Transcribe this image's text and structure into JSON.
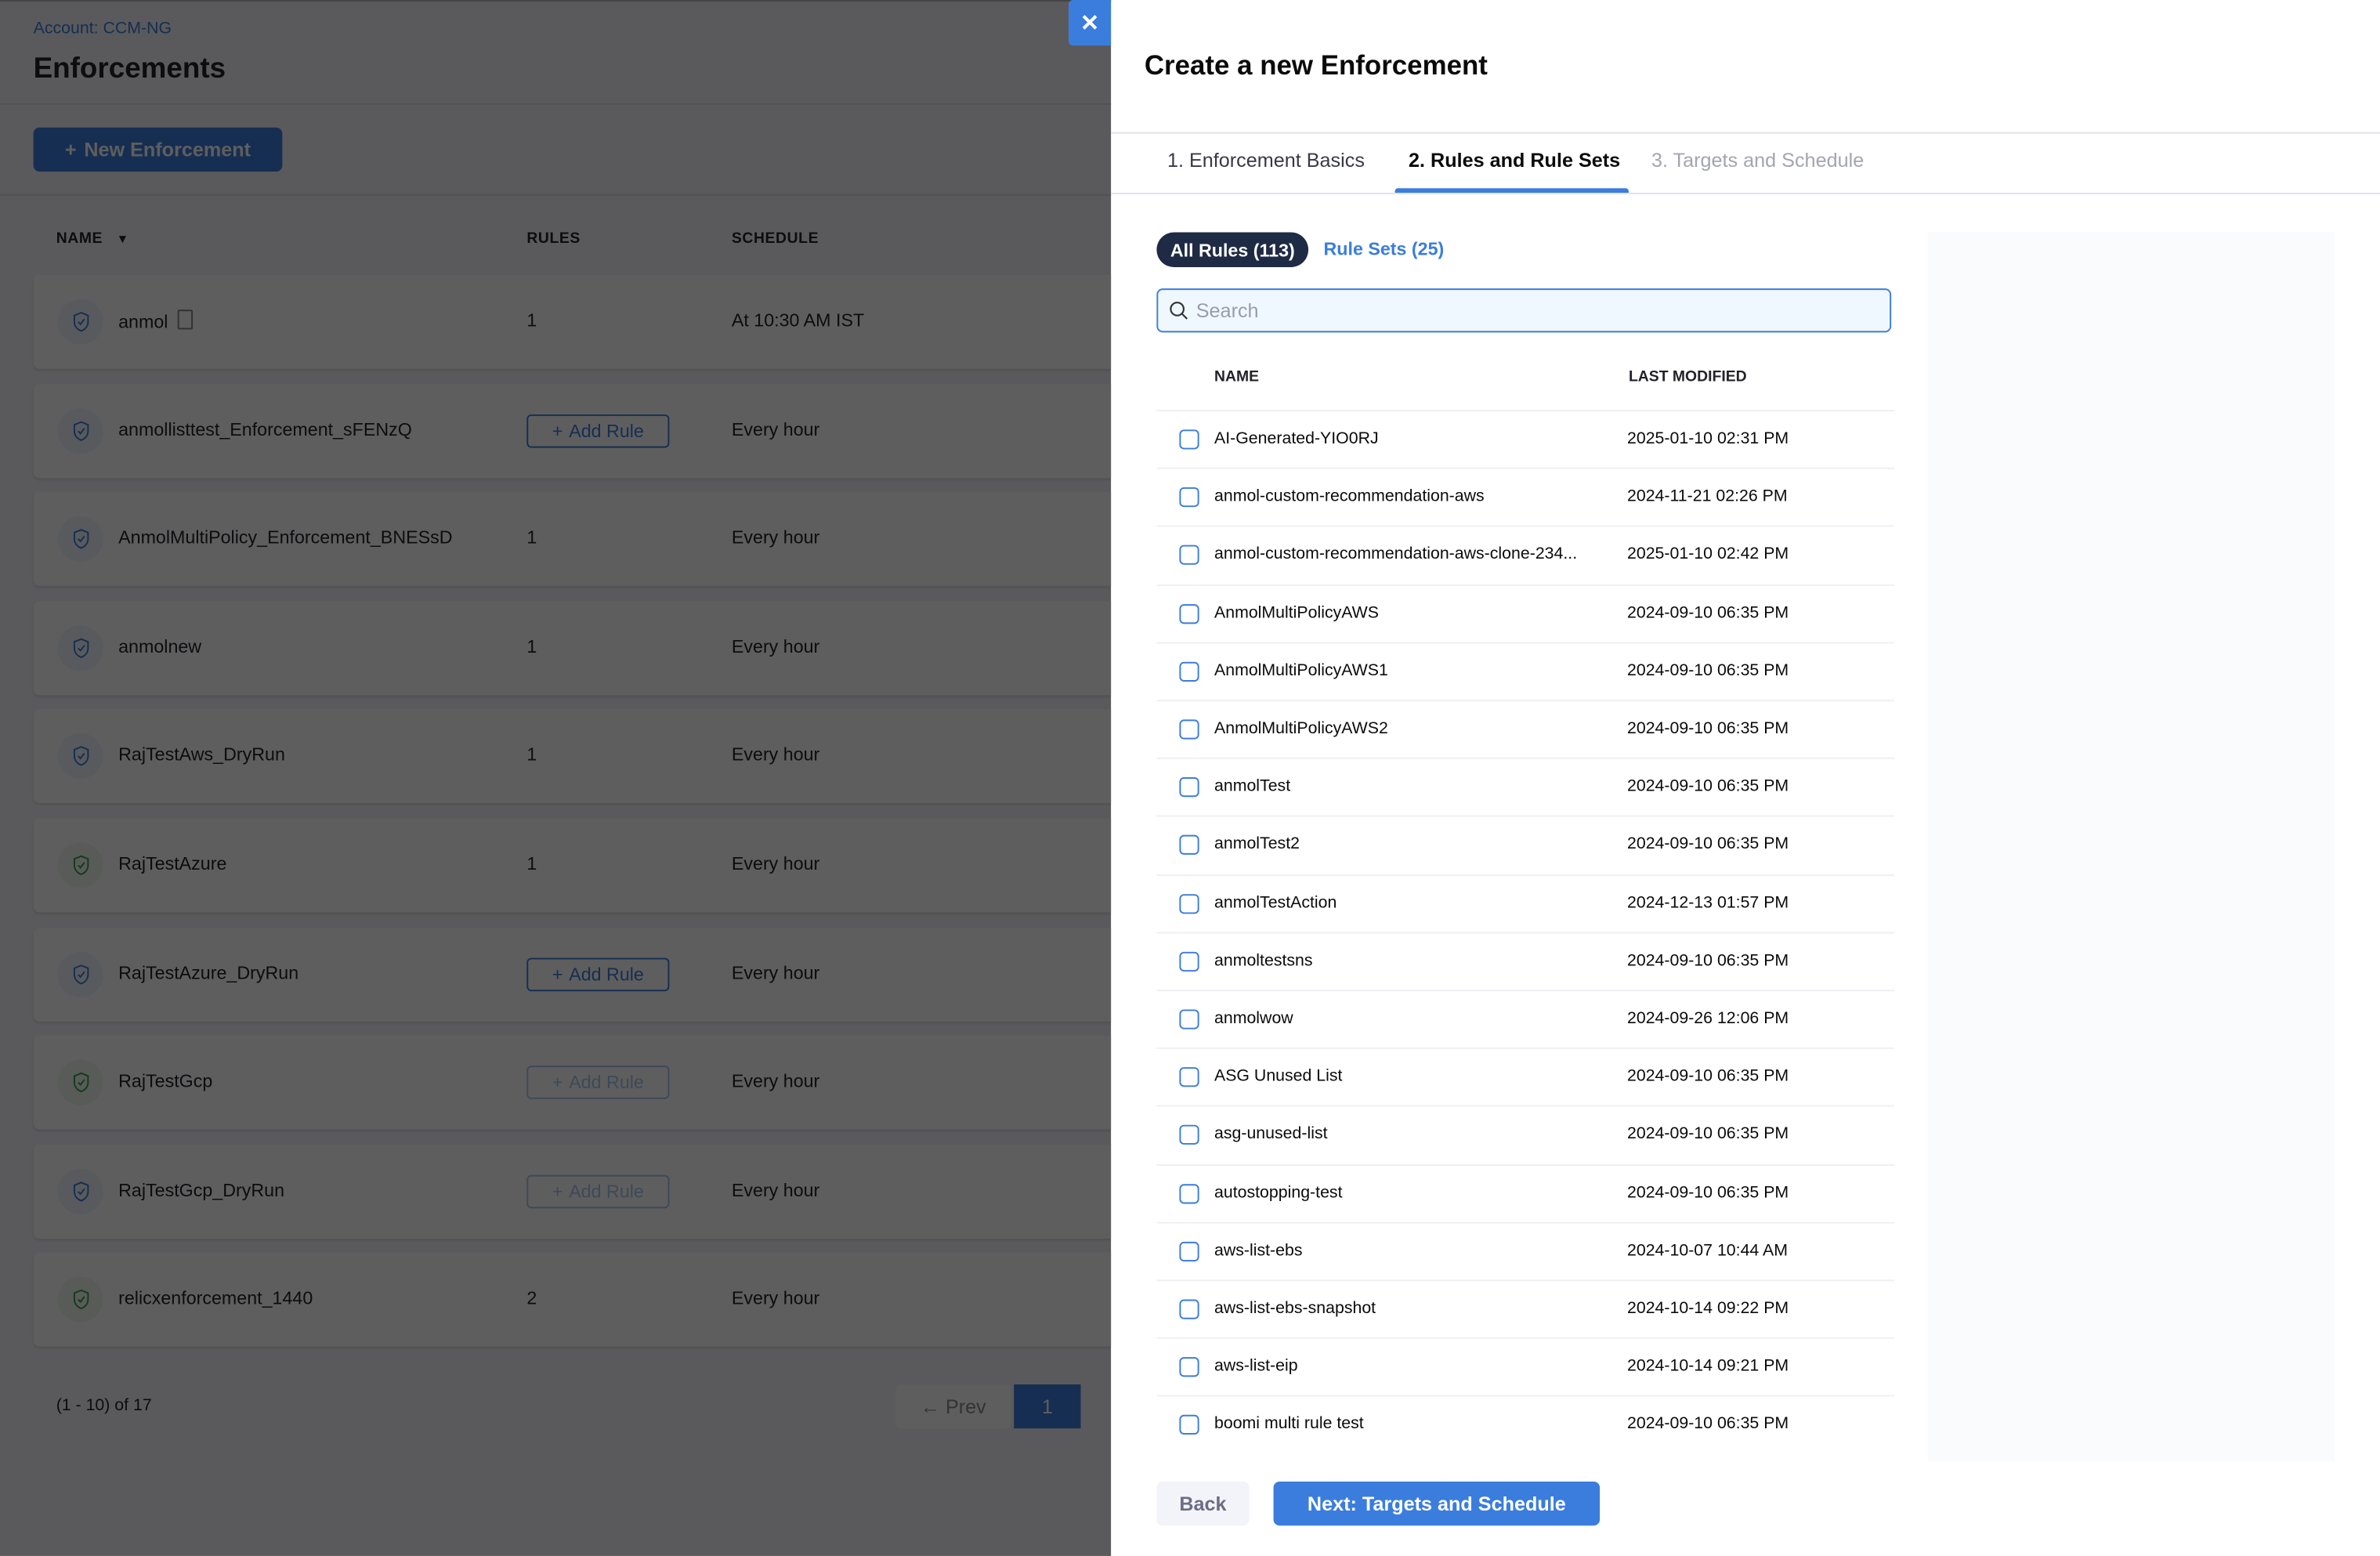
{
  "page": {
    "account": "Account: CCM-NG",
    "title": "Enforcements",
    "new_button": "New Enforcement",
    "columns": {
      "name": "NAME",
      "rules": "RULES",
      "schedule": "SCHEDULE"
    },
    "add_rule_label": "Add Rule",
    "rows": [
      {
        "name": "anmol",
        "rules": "1",
        "schedule": "At 10:30 AM IST",
        "icon_color": "blue"
      },
      {
        "name": "anmollisttest_Enforcement_sFENzQ",
        "rules": "",
        "schedule": "Every hour",
        "icon_color": "blue"
      },
      {
        "name": "AnmolMultiPolicy_Enforcement_BNESsD",
        "rules": "1",
        "schedule": "Every hour",
        "icon_color": "blue"
      },
      {
        "name": "anmolnew",
        "rules": "1",
        "schedule": "Every hour",
        "icon_color": "blue"
      },
      {
        "name": "RajTestAws_DryRun",
        "rules": "1",
        "schedule": "Every hour",
        "icon_color": "blue"
      },
      {
        "name": "RajTestAzure",
        "rules": "1",
        "schedule": "Every hour",
        "icon_color": "green"
      },
      {
        "name": "RajTestAzure_DryRun",
        "rules": "",
        "schedule": "Every hour",
        "icon_color": "blue"
      },
      {
        "name": "RajTestGcp",
        "rules": "",
        "schedule": "Every hour",
        "icon_color": "green",
        "add_disabled": true
      },
      {
        "name": "RajTestGcp_DryRun",
        "rules": "",
        "schedule": "Every hour",
        "icon_color": "blue",
        "add_disabled": true
      },
      {
        "name": "relicxenforcement_1440",
        "rules": "2",
        "schedule": "Every hour",
        "icon_color": "green"
      }
    ],
    "pagination": {
      "count": "(1 - 10) of 17",
      "prev": "Prev",
      "current": "1"
    }
  },
  "drawer": {
    "title": "Create a new Enforcement",
    "tabs": [
      {
        "label": "1. Enforcement Basics",
        "state": "done"
      },
      {
        "label": "2. Rules and Rule Sets",
        "state": "active"
      },
      {
        "label": "3. Targets and Schedule",
        "state": "disabled"
      }
    ],
    "filters": {
      "all_rules": "All Rules (113)",
      "rule_sets": "Rule Sets (25)"
    },
    "search_placeholder": "Search",
    "columns": {
      "name": "NAME",
      "modified": "LAST MODIFIED"
    },
    "rules": [
      {
        "name": "AI-Generated-YIO0RJ",
        "modified": "2025-01-10 02:31 PM"
      },
      {
        "name": "anmol-custom-recommendation-aws",
        "modified": "2024-11-21 02:26 PM"
      },
      {
        "name": "anmol-custom-recommendation-aws-clone-234...",
        "modified": "2025-01-10 02:42 PM"
      },
      {
        "name": "AnmolMultiPolicyAWS",
        "modified": "2024-09-10 06:35 PM"
      },
      {
        "name": "AnmolMultiPolicyAWS1",
        "modified": "2024-09-10 06:35 PM"
      },
      {
        "name": "AnmolMultiPolicyAWS2",
        "modified": "2024-09-10 06:35 PM"
      },
      {
        "name": "anmolTest",
        "modified": "2024-09-10 06:35 PM"
      },
      {
        "name": "anmolTest2",
        "modified": "2024-09-10 06:35 PM"
      },
      {
        "name": "anmolTestAction",
        "modified": "2024-12-13 01:57 PM"
      },
      {
        "name": "anmoltestsns",
        "modified": "2024-09-10 06:35 PM"
      },
      {
        "name": "anmolwow",
        "modified": "2024-09-26 12:06 PM"
      },
      {
        "name": "ASG Unused List",
        "modified": "2024-09-10 06:35 PM"
      },
      {
        "name": "asg-unused-list",
        "modified": "2024-09-10 06:35 PM"
      },
      {
        "name": "autostopping-test",
        "modified": "2024-09-10 06:35 PM"
      },
      {
        "name": "aws-list-ebs",
        "modified": "2024-10-07 10:44 AM"
      },
      {
        "name": "aws-list-ebs-snapshot",
        "modified": "2024-10-14 09:22 PM"
      },
      {
        "name": "aws-list-eip",
        "modified": "2024-10-14 09:21 PM"
      },
      {
        "name": "boomi multi rule test",
        "modified": "2024-09-10 06:35 PM"
      }
    ],
    "back": "Back",
    "next": "Next: Targets and Schedule",
    "close_icon": "close-icon"
  },
  "colors": {
    "accent": "#3b7ddd",
    "pill": "#1f2a44",
    "shield_blue": "#3b7ddd",
    "shield_green": "#3a9a48"
  }
}
